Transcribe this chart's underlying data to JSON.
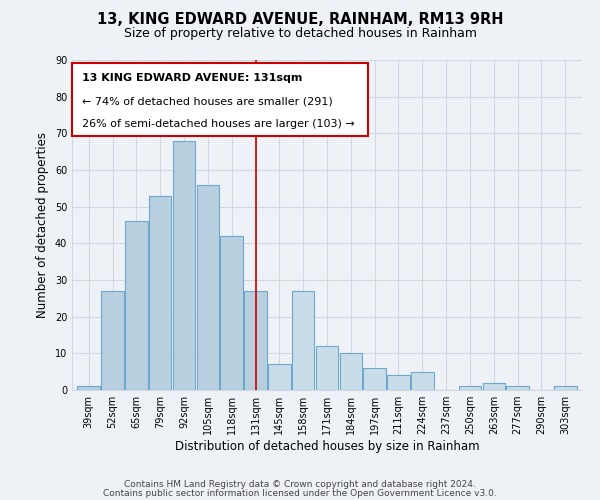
{
  "title": "13, KING EDWARD AVENUE, RAINHAM, RM13 9RH",
  "subtitle": "Size of property relative to detached houses in Rainham",
  "xlabel": "Distribution of detached houses by size in Rainham",
  "ylabel": "Number of detached properties",
  "categories": [
    "39sqm",
    "52sqm",
    "65sqm",
    "79sqm",
    "92sqm",
    "105sqm",
    "118sqm",
    "131sqm",
    "145sqm",
    "158sqm",
    "171sqm",
    "184sqm",
    "197sqm",
    "211sqm",
    "224sqm",
    "237sqm",
    "250sqm",
    "263sqm",
    "277sqm",
    "290sqm",
    "303sqm"
  ],
  "values": [
    1,
    27,
    46,
    53,
    68,
    56,
    42,
    27,
    7,
    27,
    12,
    10,
    6,
    4,
    5,
    0,
    1,
    2,
    1,
    0,
    1
  ],
  "highlight_index": 7,
  "bar_color_left": "#b8cfe0",
  "bar_color_right": "#c8dcea",
  "bar_edge_color": "#6ea8cc",
  "highlight_line_color": "#cc0000",
  "ylim": [
    0,
    90
  ],
  "yticks": [
    0,
    10,
    20,
    30,
    40,
    50,
    60,
    70,
    80,
    90
  ],
  "annotation_text_line1": "13 KING EDWARD AVENUE: 131sqm",
  "annotation_text_line2": "← 74% of detached houses are smaller (291)",
  "annotation_text_line3": "26% of semi-detached houses are larger (103) →",
  "footer_line1": "Contains HM Land Registry data © Crown copyright and database right 2024.",
  "footer_line2": "Contains public sector information licensed under the Open Government Licence v3.0.",
  "background_color": "#eef2f7",
  "grid_color": "#d0d8e4",
  "title_fontsize": 10.5,
  "subtitle_fontsize": 9,
  "axis_label_fontsize": 8.5,
  "tick_fontsize": 7,
  "annotation_fontsize": 8,
  "footer_fontsize": 6.5
}
